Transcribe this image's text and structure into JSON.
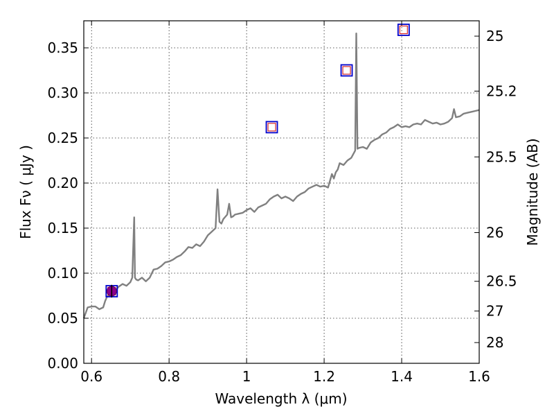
{
  "chart_data": {
    "type": "line",
    "xlabel": "Wavelength  λ (μm)",
    "ylabel": "Flux  Fν  ( μJy )",
    "ylabel_right": "Magnitude (AB)",
    "xlim": [
      0.58,
      1.6
    ],
    "ylim": [
      0.0,
      0.38
    ],
    "grid": true,
    "x_ticks": [
      0.6,
      0.8,
      1.0,
      1.2,
      1.4,
      1.6
    ],
    "x_tick_labels": [
      "0.6",
      "0.8",
      "1",
      "1.2",
      "1.4",
      "1.6"
    ],
    "y_ticks": [
      0.0,
      0.05,
      0.1,
      0.15,
      0.2,
      0.25,
      0.3,
      0.35
    ],
    "y_tick_labels": [
      "0.00",
      "0.05",
      "0.10",
      "0.15",
      "0.20",
      "0.25",
      "0.30",
      "0.35"
    ],
    "right_ticks": [
      {
        "label": "25",
        "flux": 0.363
      },
      {
        "label": "25.2",
        "flux": 0.302
      },
      {
        "label": "25.5",
        "flux": 0.229
      },
      {
        "label": "26",
        "flux": 0.145
      },
      {
        "label": "26.5",
        "flux": 0.091
      },
      {
        "label": "27",
        "flux": 0.058
      },
      {
        "label": "28",
        "flux": 0.023
      }
    ],
    "series": [
      {
        "kind": "line",
        "color": "#808080",
        "x": [
          0.58,
          0.59,
          0.6,
          0.61,
          0.62,
          0.63,
          0.635,
          0.64,
          0.65,
          0.66,
          0.67,
          0.68,
          0.69,
          0.7,
          0.705,
          0.71,
          0.712,
          0.715,
          0.72,
          0.73,
          0.74,
          0.75,
          0.76,
          0.77,
          0.78,
          0.79,
          0.8,
          0.81,
          0.82,
          0.83,
          0.84,
          0.85,
          0.86,
          0.87,
          0.88,
          0.89,
          0.9,
          0.91,
          0.92,
          0.925,
          0.93,
          0.935,
          0.94,
          0.95,
          0.955,
          0.96,
          0.965,
          0.97,
          0.98,
          0.99,
          1.0,
          1.01,
          1.02,
          1.03,
          1.04,
          1.05,
          1.06,
          1.07,
          1.08,
          1.09,
          1.1,
          1.11,
          1.12,
          1.13,
          1.14,
          1.15,
          1.16,
          1.17,
          1.18,
          1.19,
          1.2,
          1.21,
          1.22,
          1.225,
          1.23,
          1.235,
          1.24,
          1.25,
          1.26,
          1.27,
          1.28,
          1.283,
          1.286,
          1.29,
          1.3,
          1.31,
          1.32,
          1.33,
          1.34,
          1.35,
          1.36,
          1.37,
          1.38,
          1.39,
          1.4,
          1.41,
          1.42,
          1.43,
          1.44,
          1.45,
          1.46,
          1.47,
          1.48,
          1.49,
          1.5,
          1.51,
          1.52,
          1.53,
          1.535,
          1.54,
          1.55,
          1.56,
          1.57,
          1.58,
          1.59,
          1.6
        ],
        "y": [
          0.05,
          0.062,
          0.063,
          0.063,
          0.06,
          0.062,
          0.069,
          0.074,
          0.077,
          0.08,
          0.085,
          0.088,
          0.086,
          0.09,
          0.095,
          0.162,
          0.095,
          0.093,
          0.092,
          0.095,
          0.091,
          0.095,
          0.104,
          0.105,
          0.108,
          0.112,
          0.113,
          0.115,
          0.118,
          0.12,
          0.124,
          0.129,
          0.128,
          0.132,
          0.13,
          0.135,
          0.142,
          0.146,
          0.15,
          0.193,
          0.157,
          0.155,
          0.16,
          0.165,
          0.177,
          0.162,
          0.163,
          0.165,
          0.166,
          0.167,
          0.17,
          0.172,
          0.168,
          0.173,
          0.175,
          0.177,
          0.182,
          0.185,
          0.187,
          0.183,
          0.185,
          0.183,
          0.18,
          0.185,
          0.188,
          0.19,
          0.194,
          0.196,
          0.198,
          0.196,
          0.197,
          0.195,
          0.21,
          0.205,
          0.212,
          0.215,
          0.222,
          0.22,
          0.225,
          0.228,
          0.236,
          0.366,
          0.238,
          0.239,
          0.24,
          0.238,
          0.245,
          0.248,
          0.25,
          0.254,
          0.256,
          0.26,
          0.262,
          0.265,
          0.262,
          0.263,
          0.262,
          0.265,
          0.266,
          0.265,
          0.27,
          0.268,
          0.266,
          0.267,
          0.265,
          0.266,
          0.268,
          0.272,
          0.282,
          0.273,
          0.274,
          0.277,
          0.278,
          0.279,
          0.28,
          0.281
        ]
      },
      {
        "kind": "markers",
        "marker": "square",
        "color": "#0000cc",
        "points": [
          [
            0.652,
            0.08
          ],
          [
            1.065,
            0.262
          ],
          [
            1.258,
            0.325
          ],
          [
            1.405,
            0.37
          ]
        ]
      },
      {
        "kind": "markers",
        "marker": "square",
        "color": "#d62728",
        "points": [
          [
            0.652,
            0.08
          ],
          [
            1.065,
            0.262
          ],
          [
            1.258,
            0.325
          ],
          [
            1.405,
            0.37
          ]
        ]
      },
      {
        "kind": "markers",
        "marker": "circle-errorbar",
        "color": "#8b008b",
        "points": [
          [
            0.652,
            0.08,
            0.007
          ]
        ]
      }
    ]
  }
}
